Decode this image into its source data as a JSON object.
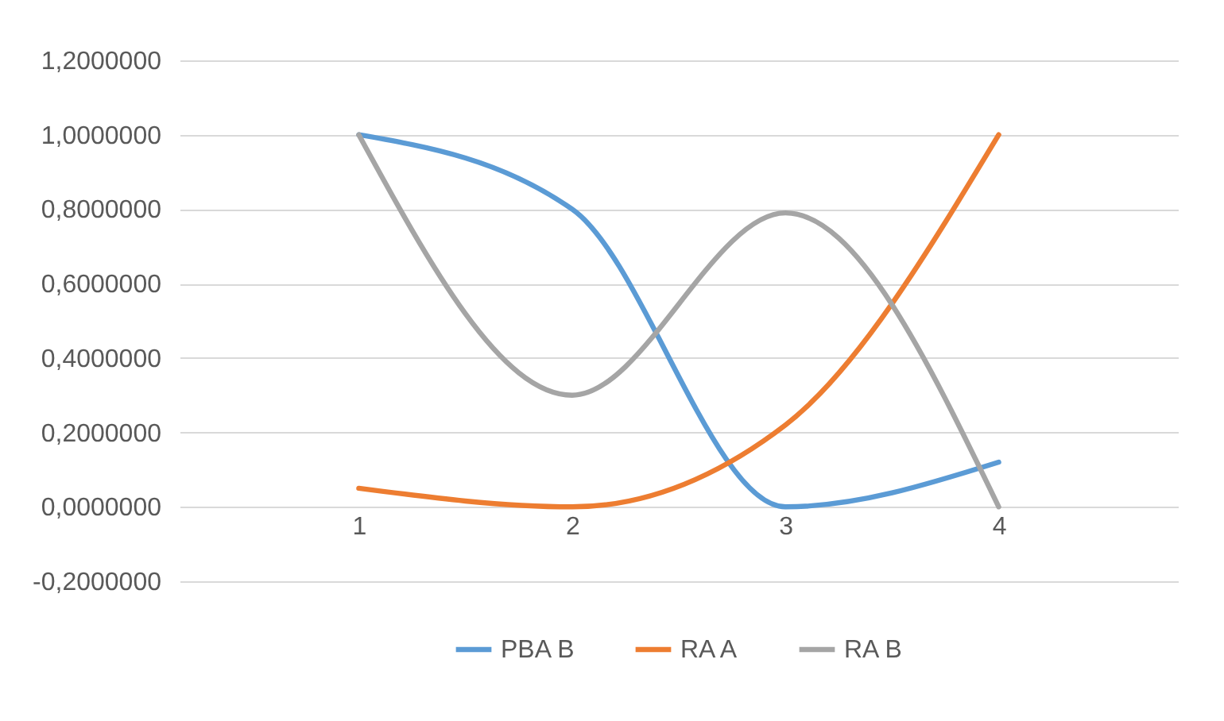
{
  "chart_data": {
    "type": "line",
    "categories": [
      "1",
      "2",
      "3",
      "4"
    ],
    "series": [
      {
        "name": "PBA B",
        "color": "#5b9bd5",
        "values": [
          1.0,
          0.8,
          0.0,
          0.12
        ]
      },
      {
        "name": "RA A",
        "color": "#ed7d31",
        "values": [
          0.05,
          0.0,
          0.22,
          1.0
        ]
      },
      {
        "name": "RA B",
        "color": "#a5a5a5",
        "values": [
          1.0,
          0.3,
          0.79,
          0.0
        ]
      }
    ],
    "ylim": [
      -0.2,
      1.2
    ],
    "yticks": [
      {
        "value": -0.2,
        "label": "-0,2000000"
      },
      {
        "value": 0,
        "label": "0,0000000"
      },
      {
        "value": 0.2,
        "label": "0,2000000"
      },
      {
        "value": 0.4,
        "label": "0,4000000"
      },
      {
        "value": 0.6,
        "label": "0,6000000"
      },
      {
        "value": 0.8,
        "label": "0,8000000"
      },
      {
        "value": 1.0,
        "label": "1,0000000"
      },
      {
        "value": 1.2,
        "label": "1,2000000"
      }
    ],
    "grid": "y",
    "legend": "bottom",
    "marker": "none",
    "line_style": "solid"
  }
}
